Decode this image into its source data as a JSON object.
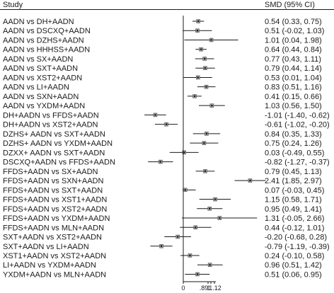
{
  "chart_data": {
    "type": "forest",
    "headers": {
      "study": "Study",
      "estimate": "SMD (95% CI)"
    },
    "x_ticks": [
      "0",
      ".89",
      "1",
      "1.12"
    ],
    "studies": [
      {
        "label": "AADN vs DH+AADN",
        "smd": 0.54,
        "lo": 0.33,
        "hi": 0.75,
        "text": "0.54 (0.33, 0.75)"
      },
      {
        "label": "AADN vs DSCXQ+AADN",
        "smd": 0.51,
        "lo": -0.02,
        "hi": 1.03,
        "text": "0.51 (-0.02, 1.03)"
      },
      {
        "label": "AADN vs DZHS+AADN",
        "smd": 1.01,
        "lo": 0.04,
        "hi": 1.98,
        "text": "1.01 (0.04, 1.98)"
      },
      {
        "label": "AADN vs HHHSS+AADN",
        "smd": 0.64,
        "lo": 0.44,
        "hi": 0.84,
        "text": "0.64 (0.44, 0.84)"
      },
      {
        "label": "AADN vs SX+AADN",
        "smd": 0.77,
        "lo": 0.43,
        "hi": 1.11,
        "text": "0.77 (0.43, 1.11)"
      },
      {
        "label": "AADN vs SXT+AADN",
        "smd": 0.79,
        "lo": 0.44,
        "hi": 1.14,
        "text": "0.79 (0.44, 1.14)"
      },
      {
        "label": "AADN vs XST2+AADN",
        "smd": 0.53,
        "lo": 0.01,
        "hi": 1.04,
        "text": "0.53 (0.01, 1.04)"
      },
      {
        "label": "AADN vs LI+AADN",
        "smd": 0.83,
        "lo": 0.51,
        "hi": 1.16,
        "text": "0.83 (0.51, 1.16)"
      },
      {
        "label": "AADN vs SXN+AADN",
        "smd": 0.41,
        "lo": 0.15,
        "hi": 0.66,
        "text": "0.41 (0.15, 0.66)"
      },
      {
        "label": "AADN vs YXDM+AADN",
        "smd": 1.03,
        "lo": 0.56,
        "hi": 1.5,
        "text": "1.03 (0.56, 1.50)"
      },
      {
        "label": "DH+AADN vs FFDS+AADN",
        "smd": -1.01,
        "lo": -1.4,
        "hi": -0.62,
        "text": "-1.01 (-1.40, -0.62)"
      },
      {
        "label": "DH+AADN vs XST2+AADN",
        "smd": -0.61,
        "lo": -1.02,
        "hi": -0.2,
        "text": "-0.61 (-1.02, -0.20)"
      },
      {
        "label": "DZHS+ AADN vs SXT+AADN",
        "smd": 0.84,
        "lo": 0.35,
        "hi": 1.33,
        "text": "0.84 (0.35, 1.33)"
      },
      {
        "label": "DZHS+ AADN vs YXDM+AADN",
        "smd": 0.75,
        "lo": 0.24,
        "hi": 1.26,
        "text": "0.75 (0.24, 1.26)"
      },
      {
        "label": "DZXX+ AADN vs SXT+AADN",
        "smd": 0.03,
        "lo": -0.49,
        "hi": 0.55,
        "text": "0.03 (-0.49, 0.55)"
      },
      {
        "label": "DSCXQ+AADN vs FFDS+AADN",
        "smd": -0.82,
        "lo": -1.27,
        "hi": -0.37,
        "text": "-0.82 (-1.27, -0.37)"
      },
      {
        "label": "FFDS+AADN vs SX+AADN",
        "smd": 0.79,
        "lo": 0.45,
        "hi": 1.13,
        "text": "0.79 (0.45, 1.13)"
      },
      {
        "label": "FFDS+AADN vs SXN+AADN",
        "smd": 2.41,
        "lo": 1.85,
        "hi": 2.97,
        "text": "2.41 (1.85, 2.97)"
      },
      {
        "label": "FFDS+AADN vs SXT+AADN",
        "smd": 0.07,
        "lo": -0.03,
        "hi": 0.45,
        "text": "0.07 (-0.03, 0.45)"
      },
      {
        "label": "FFDS+AADN vs XST1+AADN",
        "smd": 1.15,
        "lo": 0.58,
        "hi": 1.71,
        "text": "1.15 (0.58, 1.71)"
      },
      {
        "label": "FFDS+AADN vs XST2+AADN",
        "smd": 0.95,
        "lo": 0.49,
        "hi": 1.41,
        "text": "0.95 (0.49, 1.41)"
      },
      {
        "label": "FFDS+AADN vs YXDM+AADN",
        "smd": 1.31,
        "lo": -0.05,
        "hi": 2.66,
        "text": "1.31 (-0.05, 2.66)"
      },
      {
        "label": "FFDS+AADN vs MLN+AADN",
        "smd": 0.44,
        "lo": -0.12,
        "hi": 1.01,
        "text": "0.44 (-0.12, 1.01)"
      },
      {
        "label": "SXT+AADN vs XST2+AADN",
        "smd": -0.2,
        "lo": -0.68,
        "hi": 0.28,
        "text": "-0.20 (-0.68, 0.28)"
      },
      {
        "label": "SXT+AADN vs LI+AADN",
        "smd": -0.79,
        "lo": -1.19,
        "hi": -0.39,
        "text": "-0.79 (-1.19, -0.39)"
      },
      {
        "label": "XST1+AADN vs XST2+AADN",
        "smd": 0.24,
        "lo": -0.1,
        "hi": 0.58,
        "text": "0.24 (-0.10, 0.58)"
      },
      {
        "label": "LI+AADN vs YXDM+AADN",
        "smd": 0.96,
        "lo": 0.51,
        "hi": 1.42,
        "text": "0.96 (0.51, 1.42)"
      },
      {
        "label": "YXDM+AADN vs MLN+AADN",
        "smd": 0.51,
        "lo": 0.06,
        "hi": 0.95,
        "text": "0.51 (0.06, 0.95)"
      }
    ]
  }
}
